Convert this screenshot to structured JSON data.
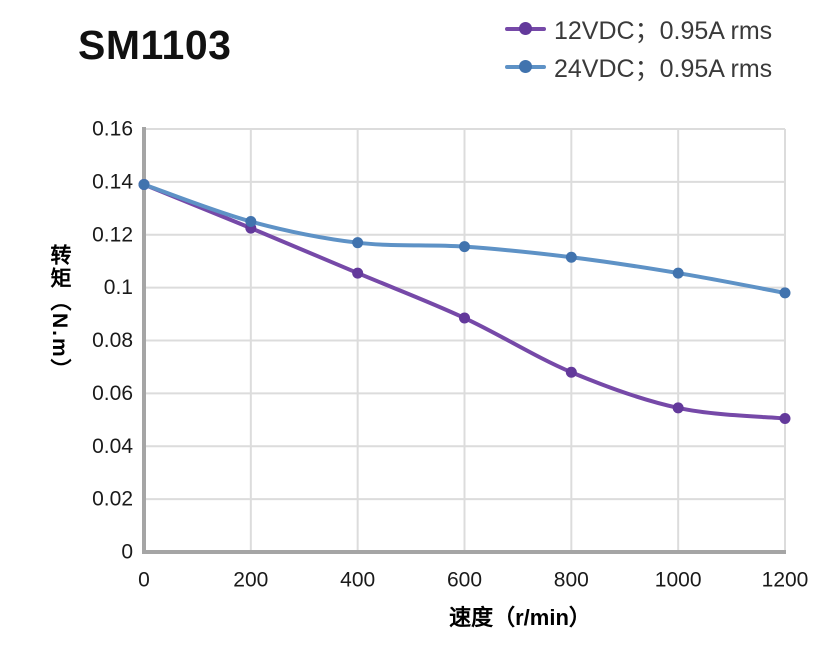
{
  "title": "SM1103",
  "legend": {
    "items": [
      {
        "label": "12VDC；0.95A rms",
        "line_color": "#7649A8",
        "marker_color": "#63399B"
      },
      {
        "label": "24VDC；0.95A rms",
        "line_color": "#5E92C6",
        "marker_color": "#4173AE"
      }
    ]
  },
  "chart_data": {
    "type": "line",
    "title": "SM1103",
    "x": [
      0,
      200,
      400,
      600,
      800,
      1000,
      1200
    ],
    "series": [
      {
        "name": "12VDC；0.95A rms",
        "values": [
          0.139,
          0.1225,
          0.1055,
          0.0885,
          0.068,
          0.0545,
          0.0505
        ],
        "line_color": "#7649A8",
        "marker_color": "#63399B"
      },
      {
        "name": "24VDC；0.95A rms",
        "values": [
          0.139,
          0.125,
          0.117,
          0.1155,
          0.1115,
          0.1055,
          0.098
        ],
        "line_color": "#5E92C6",
        "marker_color": "#4173AE"
      }
    ],
    "xlabel": "速度（r/min）",
    "ylabel": "转矩（N.m）",
    "xlim": [
      0,
      1200
    ],
    "ylim": [
      0,
      0.16
    ],
    "x_tick_values": [
      0,
      200,
      400,
      600,
      800,
      1000,
      1200
    ],
    "x_tick_labels": [
      "0",
      "200",
      "400",
      "600",
      "800",
      "1000",
      "1200"
    ],
    "y_tick_values": [
      0,
      0.02,
      0.04,
      0.06,
      0.08,
      0.1,
      0.12,
      0.14,
      0.16
    ],
    "y_tick_labels": [
      "0",
      "0.02",
      "0.04",
      "0.06",
      "0.08",
      "0.1",
      "0.12",
      "0.14",
      "0.16"
    ],
    "grid": true,
    "smoothed_lines": true,
    "legend_position": "top-right",
    "grid_color": "#DCDCDC",
    "axis_color": "#A5A5A5",
    "tick_label_color": "#1A1A1A"
  }
}
